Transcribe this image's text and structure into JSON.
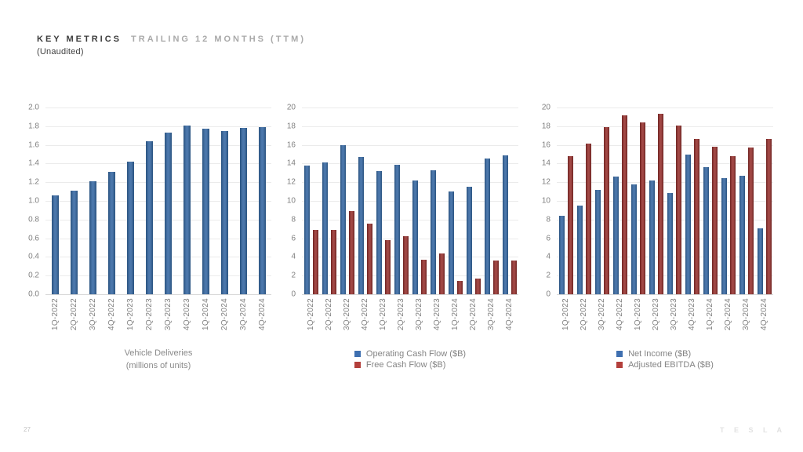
{
  "slide": {
    "title_primary": "KEY METRICS",
    "title_secondary": "TRAILING 12 MONTHS (TTM)",
    "subtitle": "(Unaudited)",
    "page_number": "27",
    "brand": "T E S L A"
  },
  "colors": {
    "blue": {
      "edge": "#2a5380",
      "mid": "#4b77ab",
      "swatch": "#3e6fb0"
    },
    "red": {
      "edge": "#6e2422",
      "mid": "#a24845",
      "swatch": "#b33f3b"
    },
    "gridline": "#ebebeb",
    "axis_line": "#d6d6d6",
    "tick_text": "#7f7f7f",
    "legend_text": "#848484"
  },
  "chart_data": [
    {
      "type": "bar",
      "title": "Vehicle Deliveries",
      "subtitle": "(millions of units)",
      "categories": [
        "1Q-2022",
        "2Q-2022",
        "3Q-2022",
        "4Q-2022",
        "1Q-2023",
        "2Q-2023",
        "3Q-2023",
        "4Q-2023",
        "1Q-2024",
        "2Q-2024",
        "3Q-2024",
        "4Q-2024"
      ],
      "series": [
        {
          "name": "Vehicle Deliveries (millions of units)",
          "color": "blue",
          "values": [
            1.06,
            1.11,
            1.21,
            1.31,
            1.42,
            1.64,
            1.73,
            1.81,
            1.77,
            1.75,
            1.78,
            1.79
          ]
        }
      ],
      "ylim": [
        0,
        2.0
      ],
      "ytick_step": 0.2,
      "yticks": [
        "2.0",
        "1.8",
        "1.6",
        "1.4",
        "1.2",
        "1.0",
        "0.8",
        "0.6",
        "0.4",
        "0.2",
        "0.0"
      ],
      "grid": true,
      "legend_position": "bottom"
    },
    {
      "type": "bar",
      "title": "",
      "subtitle": "",
      "categories": [
        "1Q-2022",
        "2Q-2022",
        "3Q-2022",
        "4Q-2022",
        "1Q-2023",
        "2Q-2023",
        "3Q-2023",
        "4Q-2023",
        "1Q-2024",
        "2Q-2024",
        "3Q-2024",
        "4Q-2024"
      ],
      "series": [
        {
          "name": "Operating Cash Flow ($B)",
          "color": "blue",
          "values": [
            13.8,
            14.1,
            16.0,
            14.7,
            13.2,
            13.9,
            12.2,
            13.3,
            11.0,
            11.5,
            14.5,
            14.9
          ]
        },
        {
          "name": "Free Cash Flow ($B)",
          "color": "red",
          "values": [
            6.9,
            6.9,
            8.9,
            7.6,
            5.8,
            6.2,
            3.7,
            4.4,
            1.4,
            1.7,
            3.6,
            3.6
          ]
        }
      ],
      "ylim": [
        0,
        20
      ],
      "ytick_step": 2,
      "yticks": [
        "20",
        "18",
        "16",
        "14",
        "12",
        "10",
        "8",
        "6",
        "4",
        "2",
        "0"
      ],
      "grid": true,
      "legend_position": "bottom"
    },
    {
      "type": "bar",
      "title": "",
      "subtitle": "",
      "categories": [
        "1Q-2022",
        "2Q-2022",
        "3Q-2022",
        "4Q-2022",
        "1Q-2023",
        "2Q-2023",
        "3Q-2023",
        "4Q-2023",
        "1Q-2024",
        "2Q-2024",
        "3Q-2024",
        "4Q-2024"
      ],
      "series": [
        {
          "name": "Net Income ($B)",
          "color": "blue",
          "values": [
            8.4,
            9.5,
            11.2,
            12.6,
            11.8,
            12.2,
            10.8,
            15.0,
            13.6,
            12.4,
            12.7,
            7.1
          ]
        },
        {
          "name": "Adjusted EBITDA ($B)",
          "color": "red",
          "values": [
            14.8,
            16.1,
            17.9,
            19.2,
            18.4,
            19.3,
            18.1,
            16.6,
            15.8,
            14.8,
            15.7,
            16.6
          ]
        }
      ],
      "ylim": [
        0,
        20
      ],
      "ytick_step": 2,
      "yticks": [
        "20",
        "18",
        "16",
        "14",
        "12",
        "10",
        "8",
        "6",
        "4",
        "2",
        "0"
      ],
      "grid": true,
      "legend_position": "bottom"
    }
  ]
}
